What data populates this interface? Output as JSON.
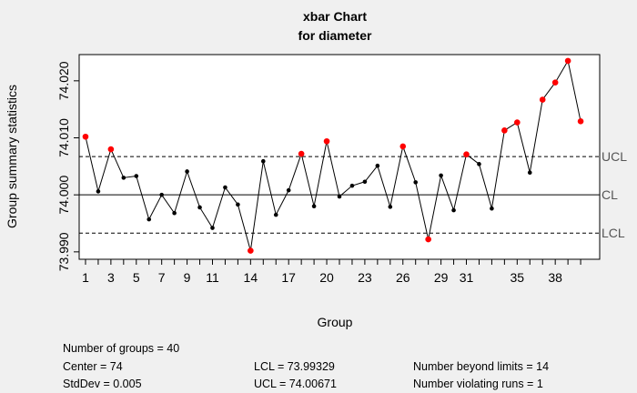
{
  "chart_data": {
    "type": "scatter",
    "title": "xbar Chart",
    "subtitle": "for diameter",
    "xlabel": "Group",
    "ylabel": "Group summary statistics",
    "x": [
      1,
      2,
      3,
      4,
      5,
      6,
      7,
      8,
      9,
      10,
      11,
      12,
      13,
      14,
      15,
      16,
      17,
      18,
      19,
      20,
      21,
      22,
      23,
      24,
      25,
      26,
      27,
      28,
      29,
      30,
      31,
      32,
      33,
      34,
      35,
      36,
      37,
      38,
      39,
      40
    ],
    "series": [
      {
        "values": [
          74.0102,
          74.0006,
          74.008,
          74.003,
          74.0033,
          73.9957,
          74.0,
          73.9968,
          74.0041,
          73.9978,
          73.9942,
          74.0013,
          73.9983,
          73.9902,
          74.0059,
          73.9965,
          74.0008,
          74.0072,
          73.998,
          74.0094,
          73.9997,
          74.0016,
          74.0023,
          74.0051,
          73.9979,
          74.0085,
          74.0022,
          73.9922,
          74.0034,
          73.9973,
          74.0071,
          74.0054,
          73.9976,
          74.0113,
          74.0127,
          74.0039,
          74.0167,
          74.0197,
          74.0235,
          74.0129
        ],
        "beyond_limits": [
          1,
          3,
          14,
          18,
          20,
          26,
          28,
          31,
          34,
          35,
          37,
          38,
          39,
          40
        ],
        "point_color": "#000000",
        "violation_color": "#ff0000"
      }
    ],
    "xticks": [
      1,
      3,
      5,
      7,
      9,
      11,
      14,
      17,
      20,
      23,
      26,
      29,
      31,
      35,
      38
    ],
    "yticks": [
      73.99,
      74.0,
      74.01,
      74.02
    ],
    "ytick_labels": [
      "73.990",
      "74.000",
      "74.010",
      "74.020"
    ],
    "xlim": [
      0.5,
      41.5
    ],
    "ylim": [
      73.9887,
      74.0246
    ],
    "control_limits": {
      "UCL": {
        "label": "UCL",
        "value": 74.00671
      },
      "CL": {
        "label": "CL",
        "value": 74.0
      },
      "LCL": {
        "label": "LCL",
        "value": 73.99329
      }
    },
    "grid": false,
    "legend": "none"
  },
  "stats": {
    "groups": "Number of groups = 40",
    "center": "Center = 74",
    "stddev": "StdDev = 0.005",
    "lcl": "LCL = 73.99329",
    "ucl": "UCL = 74.00671",
    "beyond": "Number beyond limits = 14",
    "runs": "Number violating runs = 1"
  }
}
